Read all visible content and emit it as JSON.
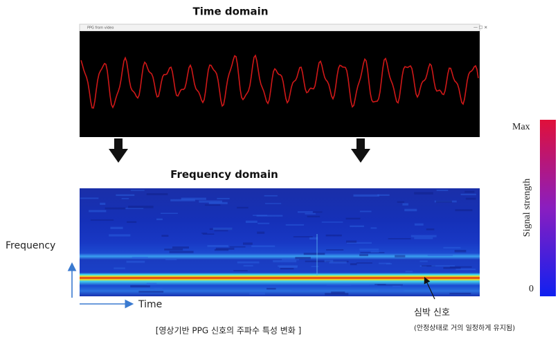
{
  "header": {
    "title": "Time domain"
  },
  "window": {
    "title": "PPG from video"
  },
  "spectrogram": {
    "title": "Frequency domain",
    "y_label": "Frequency",
    "x_label": "Time"
  },
  "colorbar": {
    "max_label": "Max",
    "min_label": "0",
    "label": "Signal strength"
  },
  "annotation": {
    "title": "심박 신호",
    "note": "(안정상태로 거의 일정하게 유지됨)"
  },
  "caption": "[영상기반 PPG 신호의 주파수 특성 변화 ]"
}
